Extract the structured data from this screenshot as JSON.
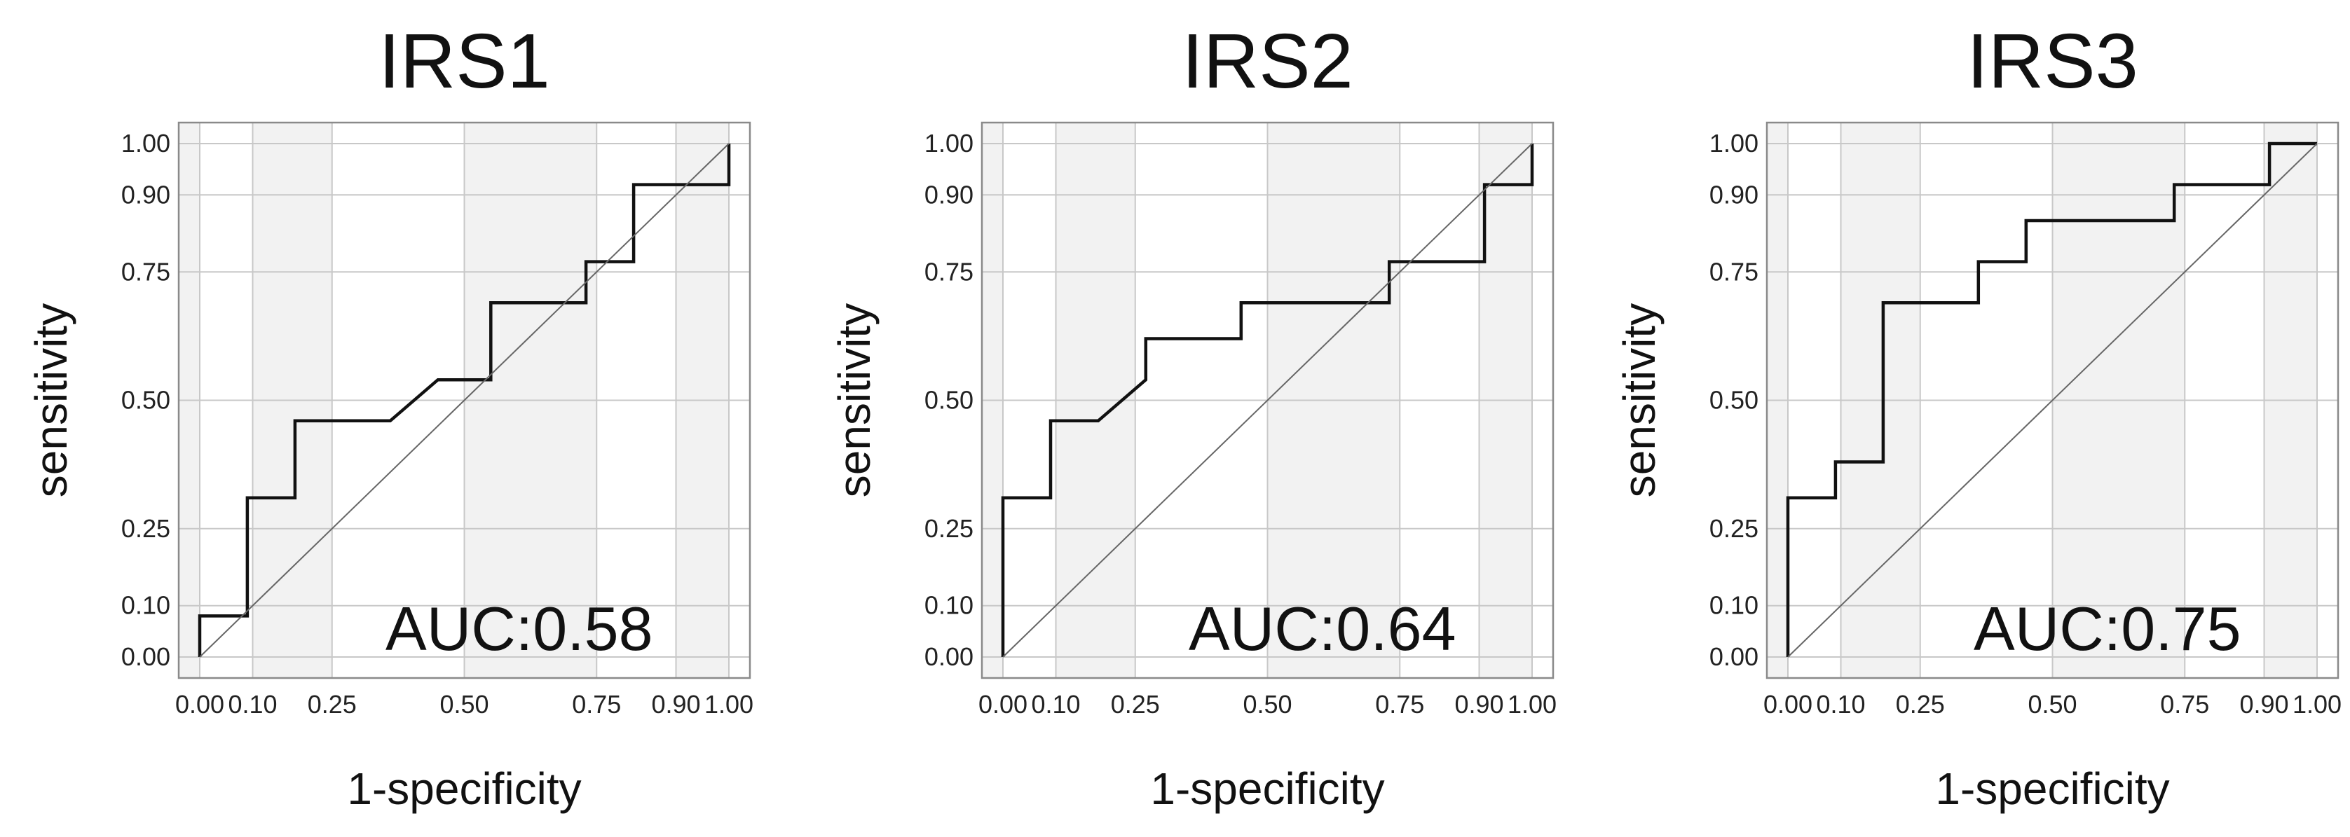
{
  "figure": {
    "background": "#ffffff",
    "stripe_color": "#f2f2f2",
    "grid_color": "#c8c8c8",
    "frame_color": "#8a8a8a",
    "curve_color": "#111111",
    "diagonal_color": "#666666"
  },
  "chart_data": [
    {
      "type": "line",
      "title": "IRS1",
      "xlabel": "1-specificity",
      "ylabel": "sensitivity",
      "xlim": [
        0,
        1
      ],
      "ylim": [
        0,
        1
      ],
      "ticks": [
        0.0,
        0.1,
        0.25,
        0.5,
        0.75,
        0.9,
        1.0
      ],
      "tick_labels": [
        "0.00",
        "0.10",
        "0.25",
        "0.50",
        "0.75",
        "0.90",
        "1.00"
      ],
      "annotation": "AUC:0.58",
      "grid": true,
      "series": [
        {
          "x": [
            0,
            0,
            0.09,
            0.09,
            0.18,
            0.18,
            0.36,
            0.45,
            0.55,
            0.55,
            0.73,
            0.73,
            0.82,
            0.82,
            1.0,
            1.0
          ],
          "y": [
            0,
            0.08,
            0.08,
            0.31,
            0.31,
            0.46,
            0.46,
            0.54,
            0.54,
            0.69,
            0.69,
            0.77,
            0.77,
            0.92,
            0.92,
            1.0
          ]
        },
        {
          "x": [
            0,
            1
          ],
          "y": [
            0,
            1
          ]
        }
      ]
    },
    {
      "type": "line",
      "title": "IRS2",
      "xlabel": "1-specificity",
      "ylabel": "sensitivity",
      "xlim": [
        0,
        1
      ],
      "ylim": [
        0,
        1
      ],
      "ticks": [
        0.0,
        0.1,
        0.25,
        0.5,
        0.75,
        0.9,
        1.0
      ],
      "tick_labels": [
        "0.00",
        "0.10",
        "0.25",
        "0.50",
        "0.75",
        "0.90",
        "1.00"
      ],
      "annotation": "AUC:0.64",
      "grid": true,
      "series": [
        {
          "x": [
            0,
            0,
            0.09,
            0.09,
            0.18,
            0.27,
            0.27,
            0.45,
            0.45,
            0.73,
            0.73,
            0.91,
            0.91,
            1.0,
            1.0
          ],
          "y": [
            0,
            0.31,
            0.31,
            0.46,
            0.46,
            0.54,
            0.62,
            0.62,
            0.69,
            0.69,
            0.77,
            0.77,
            0.92,
            0.92,
            1.0
          ]
        },
        {
          "x": [
            0,
            1
          ],
          "y": [
            0,
            1
          ]
        }
      ]
    },
    {
      "type": "line",
      "title": "IRS3",
      "xlabel": "1-specificity",
      "ylabel": "sensitivity",
      "xlim": [
        0,
        1
      ],
      "ylim": [
        0,
        1
      ],
      "ticks": [
        0.0,
        0.1,
        0.25,
        0.5,
        0.75,
        0.9,
        1.0
      ],
      "tick_labels": [
        "0.00",
        "0.10",
        "0.25",
        "0.50",
        "0.75",
        "0.90",
        "1.00"
      ],
      "annotation": "AUC:0.75",
      "grid": true,
      "series": [
        {
          "x": [
            0,
            0,
            0.09,
            0.09,
            0.18,
            0.18,
            0.36,
            0.36,
            0.45,
            0.45,
            0.73,
            0.73,
            0.91,
            0.91,
            1.0
          ],
          "y": [
            0,
            0.31,
            0.31,
            0.38,
            0.38,
            0.69,
            0.69,
            0.77,
            0.77,
            0.85,
            0.85,
            0.92,
            0.92,
            1.0,
            1.0
          ]
        },
        {
          "x": [
            0,
            1
          ],
          "y": [
            0,
            1
          ]
        }
      ]
    }
  ]
}
